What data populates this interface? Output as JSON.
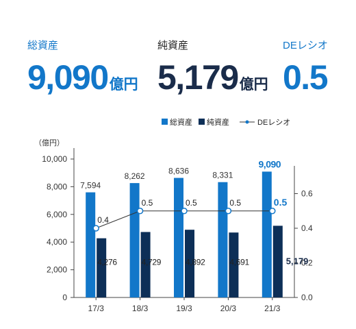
{
  "kpis": [
    {
      "label": "総資産",
      "value": "9,090",
      "unit": "億円"
    },
    {
      "label": "純資産",
      "value": "5,179",
      "unit": "億円"
    },
    {
      "label": "DEレシオ",
      "value": "0.5",
      "unit": ""
    }
  ],
  "colors": {
    "total_assets": "#1277c9",
    "net_assets": "#0d2f57",
    "de_ratio_marker": "#1277c9",
    "de_ratio_line": "#333333"
  },
  "chart_data": {
    "type": "bar",
    "categories": [
      "17/3",
      "18/3",
      "19/3",
      "20/3",
      "21/3"
    ],
    "series": [
      {
        "name": "総資産",
        "kind": "bar",
        "axis": "left",
        "values": [
          7594,
          8262,
          8636,
          8331,
          9090
        ],
        "labels": [
          "7,594",
          "8,262",
          "8,636",
          "8,331",
          "9,090"
        ]
      },
      {
        "name": "純資産",
        "kind": "bar",
        "axis": "left",
        "values": [
          4276,
          4729,
          4892,
          4691,
          5179
        ],
        "labels": [
          "4,276",
          "4,729",
          "4,892",
          "4,691",
          "5,179"
        ]
      },
      {
        "name": "DEレシオ",
        "kind": "line",
        "axis": "right",
        "values": [
          0.4,
          0.5,
          0.5,
          0.5,
          0.5
        ],
        "labels": [
          "0.4",
          "0.5",
          "0.5",
          "0.5",
          "0.5"
        ]
      }
    ],
    "ylabel": "（億円）",
    "ylim": [
      0,
      10000
    ],
    "yticks": [
      0,
      2000,
      4000,
      6000,
      8000,
      10000
    ],
    "ytick_labels": [
      "0",
      "2,000",
      "4,000",
      "6,000",
      "8,000",
      "10,000"
    ],
    "y2lim": [
      0,
      0.8
    ],
    "y2ticks": [
      0,
      0.2,
      0.4,
      0.6
    ],
    "y2tick_labels": [
      "0.0",
      "0.2",
      "0.4",
      "0.6"
    ],
    "legend_position": "top-right",
    "grid": false
  }
}
